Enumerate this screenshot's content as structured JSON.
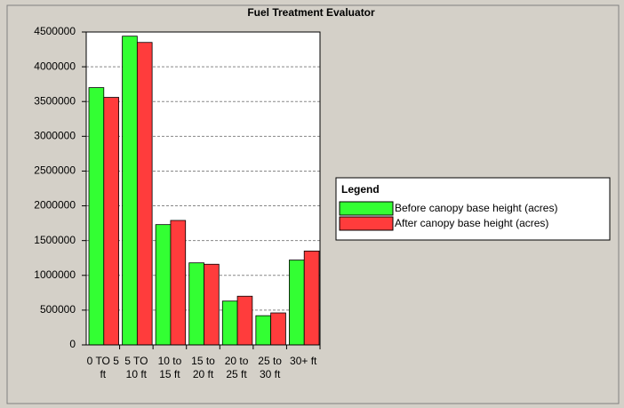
{
  "chart_data": {
    "type": "bar",
    "title": "Fuel Treatment Evaluator",
    "categories": [
      "0 TO 5 ft",
      "5 TO 10 ft",
      "10 to 15 ft",
      "15 to 20 ft",
      "20 to 25 ft",
      "25 to 30 ft",
      "30+ ft"
    ],
    "series": [
      {
        "name": "Before canopy base height (acres)",
        "color": "#33ff33",
        "values": [
          3700000,
          4440000,
          1730000,
          1180000,
          630000,
          420000,
          1220000
        ]
      },
      {
        "name": "After canopy base height (acres)",
        "color": "#ff3c3c",
        "values": [
          3560000,
          4350000,
          1790000,
          1160000,
          700000,
          460000,
          1350000
        ]
      }
    ],
    "ylim": [
      0,
      4500000
    ],
    "yticks": [
      0,
      500000,
      1000000,
      1500000,
      2000000,
      2500000,
      3000000,
      3500000,
      4000000,
      4500000
    ],
    "grid": true,
    "legend_title": "Legend",
    "legend_position": "right"
  }
}
